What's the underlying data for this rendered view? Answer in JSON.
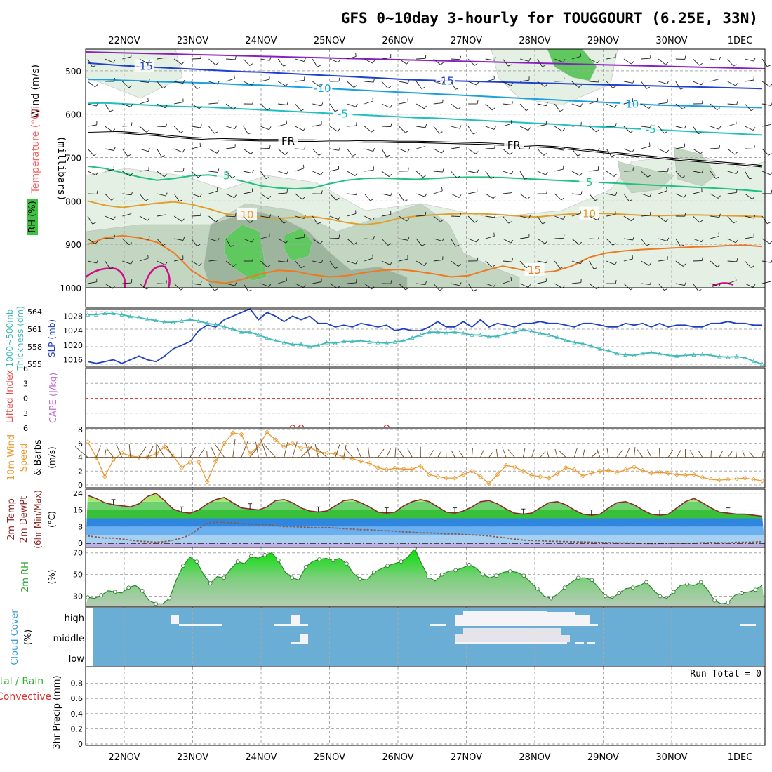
{
  "title": "GFS 0~10day 3-hourly for TOUGGOURT (6.25E, 33N)",
  "colors": {
    "grid": "#a8a8a8",
    "frame": "#000000",
    "rh_light": "#e4f0e4",
    "rh_mid": "#c2d6c2",
    "rh_dark": "#9db59d",
    "rh_green": "#5fc85f",
    "slp": "#1f3fc0",
    "thickness": "#3fb8b8",
    "wind10": "#e89a30",
    "barb": "#6b4a2a",
    "temp": "#8a2a2a",
    "dewpt": "#8a5a4a",
    "rh2m_line": "#2a8a2a",
    "cloud_bg": "#6aaed6",
    "cloud_white": "#f4f4f8",
    "cloud_grey": "#e4e4ea",
    "li_zero": "#e04040"
  },
  "chart_data": [
    {
      "id": "pressure-panel",
      "type": "heatmap",
      "xlabels": [
        "22NOV",
        "23NOV",
        "24NOV",
        "25NOV",
        "26NOV",
        "27NOV",
        "28NOV",
        "29NOV",
        "30NOV",
        "1DEC"
      ],
      "ylabel": "(millibars)",
      "side_labels": [
        {
          "text": "Wind (m/s)",
          "color": "#000000"
        },
        {
          "text": "Temperature (°C)",
          "color": "#ff6060"
        },
        {
          "text": "RH (%)",
          "color": "#000000"
        }
      ],
      "ylim": [
        450,
        1000
      ],
      "yticks": [
        500,
        600,
        700,
        800,
        900,
        1000
      ],
      "isotherms": [
        {
          "label": "-15",
          "color": "#2040d0",
          "label_positions": [
            0.5,
            4.9
          ],
          "values": [
            482,
            485,
            488,
            490,
            492,
            494,
            496,
            498,
            500,
            502,
            503,
            505,
            507,
            509,
            511,
            513,
            515,
            517,
            519,
            521,
            522,
            523,
            524,
            525,
            526,
            527,
            528,
            529,
            530,
            531,
            532,
            533,
            534,
            535,
            536,
            537,
            538,
            539,
            540,
            541
          ]
        },
        {
          "label": "-10",
          "color": "#1aa0e0",
          "label_positions": [
            3.1,
            7.6
          ],
          "values": [
            520,
            520,
            522,
            523,
            525,
            526,
            527,
            528,
            530,
            532,
            533,
            535,
            537,
            539,
            541,
            543,
            545,
            547,
            549,
            551,
            553,
            555,
            557,
            559,
            561,
            563,
            565,
            567,
            569,
            571,
            573,
            575,
            577,
            579,
            580,
            581,
            582,
            583,
            584,
            585
          ]
        },
        {
          "label": "-5",
          "color": "#20c0c0",
          "label_positions": [
            3.4,
            7.9
          ],
          "values": [
            575,
            574,
            576,
            578,
            580,
            582,
            583,
            584,
            586,
            588,
            590,
            592,
            594,
            596,
            598,
            600,
            602,
            604,
            606,
            608,
            609,
            611,
            613,
            615,
            617,
            619,
            621,
            623,
            626,
            628,
            630,
            632,
            634,
            636,
            638,
            640,
            642,
            644,
            646,
            648
          ]
        },
        {
          "label": "FR",
          "color": "#000000",
          "double": true,
          "label_positions": [
            2.6,
            5.9
          ],
          "values": [
            640,
            641,
            642,
            645,
            648,
            652,
            655,
            657,
            658,
            659,
            660,
            660,
            661,
            661,
            662,
            662,
            663,
            663,
            664,
            664,
            665,
            666,
            667,
            668,
            670,
            672,
            674,
            676,
            680,
            684,
            688,
            692,
            696,
            700,
            704,
            707,
            710,
            713,
            716,
            720
          ]
        },
        {
          "label": "5",
          "color": "#20c080",
          "label_positions": [
            1.7,
            7.0
          ],
          "values": [
            720,
            725,
            735,
            745,
            752,
            748,
            742,
            740,
            745,
            755,
            765,
            770,
            772,
            770,
            760,
            752,
            748,
            747,
            749,
            750,
            748,
            746,
            745,
            745,
            746,
            748,
            750,
            752,
            754,
            756,
            758,
            760,
            762,
            764,
            766,
            768,
            770,
            772,
            775,
            778
          ]
        },
        {
          "label": "10",
          "color": "#e0a030",
          "label_positions": [
            2.0,
            7.0
          ],
          "values": [
            800,
            810,
            815,
            810,
            805,
            802,
            808,
            818,
            830,
            835,
            838,
            840,
            838,
            836,
            842,
            850,
            855,
            850,
            840,
            835,
            832,
            830,
            829,
            830,
            832,
            835,
            837,
            833,
            830,
            828,
            829,
            831,
            833,
            834,
            833,
            832,
            833,
            834,
            835,
            836
          ]
        },
        {
          "label": "15",
          "color": "#f07820",
          "label_positions": [
            6.2
          ],
          "values": [
            900,
            885,
            880,
            885,
            895,
            920,
            960,
            985,
            990,
            980,
            968,
            960,
            962,
            970,
            975,
            972,
            965,
            960,
            958,
            962,
            968,
            975,
            972,
            960,
            950,
            958,
            965,
            962,
            950,
            930,
            920,
            915,
            912,
            910,
            908,
            906,
            905,
            903,
            902,
            905
          ]
        }
      ],
      "rh_levels": [
        30,
        50,
        70,
        90
      ]
    },
    {
      "id": "slp-thickness",
      "type": "line",
      "left_label": "1000~500mb Thickness (dm)",
      "right_label": "SLP (mb)",
      "left_ticks": [
        555,
        558,
        561,
        564
      ],
      "right_ticks": [
        1016,
        1020,
        1024,
        1028
      ],
      "left_lim": [
        554.5,
        564.5
      ],
      "right_lim": [
        1014,
        1030
      ],
      "series": [
        {
          "name": "SLP",
          "color": "#1f3fc0",
          "axis": "right",
          "values": [
            1015.5,
            1015,
            1015.5,
            1016,
            1015,
            1016,
            1017,
            1016,
            1015.5,
            1017,
            1019,
            1020,
            1021,
            1024,
            1025.5,
            1025,
            1027,
            1028,
            1029,
            1030,
            1027,
            1029,
            1028,
            1026.5,
            1028,
            1027,
            1028,
            1026,
            1026,
            1025,
            1025.5,
            1025,
            1026,
            1025.5,
            1025,
            1025.5,
            1024,
            1024.5,
            1024,
            1024,
            1025,
            1026.5,
            1025,
            1025,
            1026.5,
            1025,
            1027,
            1025,
            1026,
            1025.5,
            1025,
            1026,
            1026,
            1026.5,
            1026,
            1026,
            1025.5,
            1025,
            1026,
            1026,
            1025.5,
            1025,
            1025,
            1026,
            1025.5,
            1026,
            1025,
            1026,
            1025,
            1025.5,
            1025.5,
            1025,
            1025,
            1026,
            1026,
            1026.5,
            1026,
            1026,
            1025.5,
            1025.5
          ]
        },
        {
          "name": "Thickness",
          "color": "#3fb8b8",
          "axis": "left",
          "values": [
            563.5,
            563.5,
            563.7,
            563.7,
            563.5,
            563.2,
            563,
            562.7,
            562.5,
            562.2,
            562.2,
            562.4,
            562.6,
            562.4,
            562,
            561.8,
            561.4,
            561,
            560.5,
            560.5,
            560,
            559.5,
            559,
            558.7,
            558.4,
            558.4,
            558,
            558.2,
            558.7,
            558.6,
            558.9,
            558.9,
            559,
            558.8,
            558.7,
            558.6,
            558.8,
            559,
            559.5,
            560,
            560.5,
            560.5,
            560.4,
            560.5,
            560.3,
            560,
            560,
            559.7,
            559.8,
            560.2,
            560.5,
            560.9,
            560.6,
            560.3,
            560,
            559.6,
            559.1,
            558.7,
            558.5,
            558.1,
            557.6,
            557.3,
            556.8,
            556.6,
            556.5,
            556.8,
            557,
            556.8,
            556.5,
            556.4,
            556.5,
            556.6,
            556.7,
            556.5,
            556.3,
            556.2,
            556.3,
            556.1,
            555.5,
            555
          ]
        }
      ]
    },
    {
      "id": "li-cape",
      "type": "line",
      "left_label": "Lifted Index",
      "right_label": "CAPE (J/kg)",
      "left_ticks": [
        -6,
        -3,
        0,
        3,
        6
      ],
      "left_tick_labels": [
        "6",
        "3",
        "0",
        "3",
        "6"
      ],
      "ylim": [
        -6,
        6
      ],
      "cape_marks": [
        24,
        25,
        35
      ]
    },
    {
      "id": "wind10m",
      "type": "line",
      "left_label": "10m Wind Speed & Barbs",
      "units": "(m/s)",
      "yticks": [
        0,
        2,
        4,
        6,
        8
      ],
      "ylim": [
        0,
        8
      ],
      "barb_level": 4,
      "values": [
        6.2,
        4.0,
        1.2,
        3.6,
        4.6,
        4.2,
        4.0,
        4.0,
        4.5,
        5.5,
        4.2,
        2.5,
        3.3,
        3.3,
        0.5,
        3.4,
        6.0,
        7.5,
        7.3,
        4.5,
        5.6,
        7.6,
        6.5,
        5.5,
        6.0,
        5.3,
        5.4,
        4.8,
        4.6,
        4.5,
        4.0,
        3.8,
        3.4,
        3.1,
        2.5,
        2.2,
        2.4,
        2.3,
        2.3,
        2.7,
        1.5,
        1.2,
        1.0,
        1.0,
        1.5,
        2.0,
        1.2,
        0.2,
        1.5,
        2.8,
        2.6,
        2.0,
        1.4,
        1.2,
        1.0,
        1.6,
        2.5,
        2.2,
        1.3,
        1.7,
        2.0,
        2.1,
        1.8,
        2.2,
        2.6,
        2.1,
        1.7,
        1.8,
        1.7,
        1.5,
        1.4,
        1.5,
        1.1,
        0.8,
        0.7,
        0.8,
        0.9,
        1.0,
        0.8,
        0.6
      ]
    },
    {
      "id": "temp-dewpt",
      "type": "area",
      "left_label": "2m Temp / 2m DewPt (6hr Min/Max) (°C)",
      "yticks": [
        0,
        8,
        16,
        24
      ],
      "ylim": [
        -2,
        26
      ],
      "bands": [
        {
          "from": -2,
          "to": 0,
          "color": "#c0b0e8"
        },
        {
          "from": 0,
          "to": 4,
          "color": "#a8d0f0"
        },
        {
          "from": 4,
          "to": 8,
          "color": "#6ab0f0"
        },
        {
          "from": 8,
          "to": 12,
          "color": "#2f86e0"
        },
        {
          "from": 12,
          "to": 16,
          "color": "#38c038"
        },
        {
          "from": 16,
          "to": 20,
          "color": "#6fd06f"
        },
        {
          "from": 20,
          "to": 24,
          "color": "#a8e870"
        },
        {
          "from": 24,
          "to": 28,
          "color": "#f4f070"
        }
      ],
      "temp": [
        23,
        21.5,
        19.5,
        18.5,
        18,
        17.5,
        19,
        22.5,
        24,
        20.5,
        16.5,
        15,
        14.5,
        16,
        19,
        21,
        22,
        19.5,
        17,
        16.5,
        16,
        17.5,
        20.5,
        21,
        19.5,
        17,
        15.5,
        15,
        15.5,
        18,
        20.5,
        21,
        19.5,
        17.5,
        15,
        14.5,
        15,
        18,
        20,
        21,
        20,
        17.5,
        15,
        14.5,
        15.5,
        17.5,
        20,
        20.5,
        19,
        16.5,
        14.5,
        14,
        14.5,
        17,
        19.5,
        20,
        18.5,
        16,
        14,
        13.5,
        14,
        17,
        19.5,
        20,
        18.5,
        16,
        14,
        13.5,
        14,
        17,
        20,
        21.5,
        19.5,
        17,
        15,
        14.5,
        14,
        14,
        13.5,
        13
      ],
      "dewpt": [
        3.5,
        3,
        2.5,
        2.5,
        2,
        1.5,
        1,
        0.8,
        0.5,
        0.8,
        1.5,
        2.5,
        4,
        7,
        9.5,
        10,
        10,
        9.8,
        9.5,
        9.2,
        9,
        9,
        8.5,
        8,
        8,
        7.8,
        7.5,
        7.4,
        7.5,
        7.3,
        7,
        6.8,
        6.5,
        6.5,
        6.2,
        6,
        5.8,
        5.5,
        5.3,
        5,
        5,
        4.8,
        4.5,
        4.5,
        4.2,
        4,
        3.8,
        3.5,
        3,
        2.6,
        2,
        1.5,
        1.3,
        1.2,
        1,
        0.9,
        0.8,
        0.7,
        0.6,
        0.5,
        0.4,
        0.3,
        0.2,
        0.2,
        0.1,
        0,
        -0.1,
        0,
        0,
        0.1,
        0,
        0.1,
        0.3,
        0.4,
        0.3,
        0.2,
        0.5,
        0.5,
        0.6,
        0.8
      ]
    },
    {
      "id": "rh2m",
      "type": "area",
      "left_label": "2m RH",
      "units": "(%)",
      "yticks": [
        30,
        50,
        70
      ],
      "ylim": [
        20,
        75
      ],
      "values": [
        29,
        28,
        31,
        35,
        34,
        33,
        38,
        40,
        35,
        26,
        23,
        23,
        28,
        45,
        58,
        66,
        62,
        50,
        42,
        48,
        47,
        55,
        62,
        60,
        67,
        65,
        68,
        70,
        63,
        52,
        47,
        45,
        57,
        62,
        64,
        65,
        63,
        65,
        60,
        51,
        46,
        45,
        52,
        55,
        58,
        60,
        62,
        66,
        74,
        60,
        48,
        44,
        50,
        53,
        54,
        56,
        59,
        56,
        50,
        47,
        49,
        52,
        53,
        52,
        49,
        43,
        37,
        30,
        28,
        32,
        38,
        43,
        47,
        47,
        45,
        38,
        30,
        28,
        33,
        37,
        38,
        40,
        43,
        36,
        30,
        28,
        34,
        40,
        41,
        40,
        43,
        36,
        26,
        23,
        24,
        31,
        33,
        34,
        36,
        40
      ],
      "note": "values sampled every 1.5 hours visually"
    },
    {
      "id": "cloud-cover",
      "type": "heatmap",
      "left_label": "Cloud Cover (%)",
      "row_labels": [
        "high",
        "middle",
        "low"
      ]
    },
    {
      "id": "precip",
      "type": "bar",
      "left_label": "Total / Rain / Convective 3hr Precip (mm)",
      "left_label_parts": [
        "Total",
        "/",
        "Rain",
        "Convective"
      ],
      "yticks": [
        0,
        0.2,
        0.4,
        0.6,
        0.8
      ],
      "ytick_labels": [
        "0",
        "0.2",
        "0.4",
        "0.6",
        "0.8"
      ],
      "ylim": [
        0,
        1
      ],
      "run_total": "Run Total = 0",
      "values": []
    }
  ]
}
